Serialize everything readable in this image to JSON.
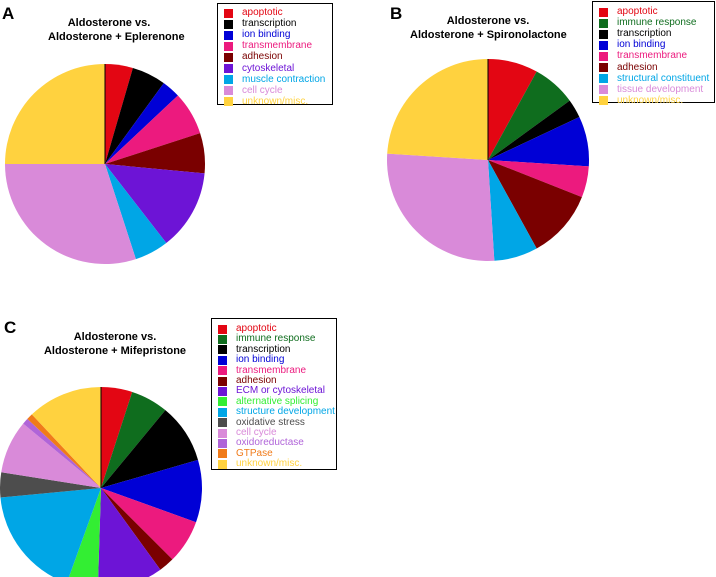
{
  "chart_data": [
    {
      "type": "pie",
      "panel": "A",
      "title": [
        "Aldosterone vs.",
        "Aldosterone + Eplerenone"
      ],
      "legend_placement": "top-right",
      "slices": [
        {
          "label": "apoptotic",
          "value": 4.5,
          "color": "#e30613"
        },
        {
          "label": "transcription",
          "value": 5.5,
          "color": "#000000"
        },
        {
          "label": "ion binding",
          "value": 3.0,
          "color": "#0000d6"
        },
        {
          "label": "transmembrane",
          "value": 7.0,
          "color": "#ec1a7e"
        },
        {
          "label": "adhesion",
          "value": 6.5,
          "color": "#7a0000"
        },
        {
          "label": "cytoskeletal",
          "value": 13.0,
          "color": "#6d14d6"
        },
        {
          "label": "muscle contraction",
          "value": 5.5,
          "color": "#00a6e6"
        },
        {
          "label": "cell cycle",
          "value": 30.0,
          "color": "#d98ad9"
        },
        {
          "label": "unknown/misc.",
          "value": 25.0,
          "color": "#ffd23f"
        }
      ]
    },
    {
      "type": "pie",
      "panel": "B",
      "title": [
        "Aldosterone vs.",
        "Aldosterone + Spironolactone"
      ],
      "legend_placement": "top-right",
      "slices": [
        {
          "label": "apoptotic",
          "value": 8.0,
          "color": "#e30613"
        },
        {
          "label": "immune response",
          "value": 7.0,
          "color": "#0f6d1e"
        },
        {
          "label": "transcription",
          "value": 3.0,
          "color": "#000000"
        },
        {
          "label": "ion binding",
          "value": 8.0,
          "color": "#0000d6"
        },
        {
          "label": "transmembrane",
          "value": 5.0,
          "color": "#ec1a7e"
        },
        {
          "label": "adhesion",
          "value": 11.0,
          "color": "#7a0000"
        },
        {
          "label": "structural constituent",
          "value": 7.0,
          "color": "#00a6e6"
        },
        {
          "label": "tissue development",
          "value": 27.0,
          "color": "#d98ad9"
        },
        {
          "label": "unknown/misc.",
          "value": 24.0,
          "color": "#ffd23f"
        }
      ]
    },
    {
      "type": "pie",
      "panel": "C",
      "title": [
        "Aldosterone vs.",
        "Aldosterone + Mifepristone"
      ],
      "legend_placement": "top-right",
      "slices": [
        {
          "label": "apoptotic",
          "value": 5.0,
          "color": "#e30613"
        },
        {
          "label": "immune response",
          "value": 6.0,
          "color": "#0f6d1e"
        },
        {
          "label": "transcription",
          "value": 9.5,
          "color": "#000000"
        },
        {
          "label": "ion binding",
          "value": 10.0,
          "color": "#0000d6"
        },
        {
          "label": "transmembrane",
          "value": 7.0,
          "color": "#ec1a7e"
        },
        {
          "label": "adhesion",
          "value": 2.5,
          "color": "#7a0000"
        },
        {
          "label": "ECM or cytoskeletal",
          "value": 10.5,
          "color": "#6d14d6"
        },
        {
          "label": "alternative splicing",
          "value": 5.0,
          "color": "#33ee33"
        },
        {
          "label": "structure development",
          "value": 18.0,
          "color": "#00a6e6"
        },
        {
          "label": "oxidative stress",
          "value": 4.0,
          "color": "#4d4d4d"
        },
        {
          "label": "cell cycle",
          "value": 8.5,
          "color": "#d98ad9"
        },
        {
          "label": "oxidoreductase",
          "value": 1.0,
          "color": "#b064d8"
        },
        {
          "label": "GTPase",
          "value": 1.0,
          "color": "#f07b1a"
        },
        {
          "label": "unknown/misc.",
          "value": 12.0,
          "color": "#ffd23f"
        }
      ]
    }
  ]
}
